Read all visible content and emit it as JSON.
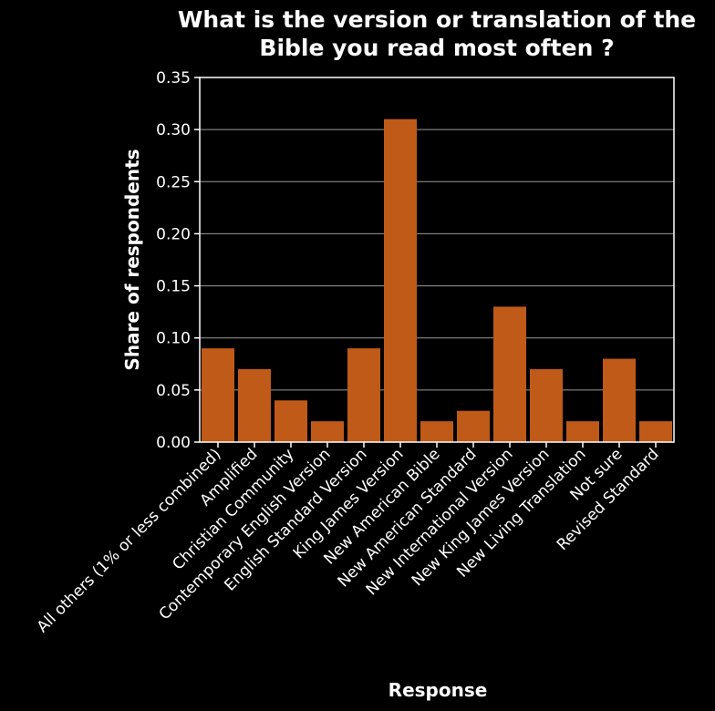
{
  "chart_data": {
    "type": "bar",
    "title_lines": [
      "What is the version or translation of the",
      "Bible you read most often ?"
    ],
    "xlabel": "Response",
    "ylabel": "Share of respondents",
    "ylim": [
      0,
      0.35
    ],
    "yticks": [
      "0.00",
      "0.05",
      "0.10",
      "0.15",
      "0.20",
      "0.25",
      "0.30",
      "0.35"
    ],
    "grid": true,
    "bar_color": "#c05a18",
    "background": "#000000",
    "categories": [
      "All others (1% or less combined)",
      "Amplified",
      "Christian Community",
      "Contemporary English Version",
      "English Standard Version",
      "King James Version",
      "New American Bible",
      "New American Standard",
      "New International Version",
      "New King James Version",
      "New Living Translation",
      "Not sure",
      "Revised Standard"
    ],
    "values": [
      0.09,
      0.07,
      0.04,
      0.02,
      0.09,
      0.31,
      0.02,
      0.03,
      0.13,
      0.07,
      0.02,
      0.08,
      0.02
    ]
  }
}
